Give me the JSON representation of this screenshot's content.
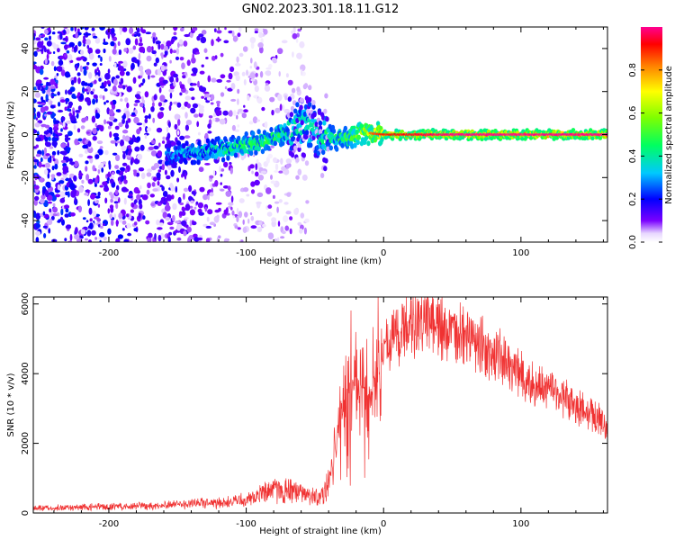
{
  "title": "GN02.2023.301.18.11.G12",
  "colors": {
    "snr_line": "#f03232",
    "colormap": [
      "#f0e6ff",
      "#c8a0ff",
      "#8a2be2",
      "#6a00ff",
      "#0000ff",
      "#00c8ff",
      "#00ff80",
      "#80ff00",
      "#ffff00",
      "#ff8000",
      "#ff0000",
      "#ff0080"
    ]
  },
  "chart_data": [
    {
      "type": "heatmap",
      "xlabel": "Height of straight line (km)",
      "ylabel": "Frequency (Hz)",
      "xlim": [
        -255,
        163
      ],
      "ylim": [
        -50,
        50
      ],
      "xticks": [
        "-200",
        "-100",
        "0",
        "100"
      ],
      "yticks": [
        "-40",
        "-20",
        "0",
        "20",
        "40"
      ],
      "xtick_values": [
        -200,
        -100,
        0,
        100
      ],
      "ytick_values": [
        -40,
        -20,
        0,
        20,
        40
      ],
      "grid": false,
      "colorbar": {
        "label": "Normalized spectral amplitude",
        "range": [
          0,
          1
        ],
        "ticks": [
          "0.0",
          "0.2",
          "0.4",
          "0.6",
          "0.8"
        ],
        "tick_values": [
          0.0,
          0.2,
          0.4,
          0.6,
          0.8
        ]
      },
      "ridge": {
        "description_points": [
          {
            "x": -158,
            "freq": -10,
            "amp": 0.35
          },
          {
            "x": -140,
            "freq": -8,
            "amp": 0.45
          },
          {
            "x": -120,
            "freq": -7,
            "amp": 0.5
          },
          {
            "x": -100,
            "freq": -5,
            "amp": 0.6
          },
          {
            "x": -85,
            "freq": -3,
            "amp": 0.6
          },
          {
            "x": -70,
            "freq": 2,
            "amp": 0.55
          },
          {
            "x": -58,
            "freq": 5,
            "amp": 0.5
          },
          {
            "x": -45,
            "freq": -1,
            "amp": 0.55
          },
          {
            "x": -30,
            "freq": -2,
            "amp": 0.6
          },
          {
            "x": -15,
            "freq": 1,
            "amp": 0.8
          },
          {
            "x": 0,
            "freq": 0,
            "amp": 0.9
          },
          {
            "x": 50,
            "freq": 0,
            "amp": 1.0
          },
          {
            "x": 100,
            "freq": 0,
            "amp": 1.0
          },
          {
            "x": 163,
            "freq": 0,
            "amp": 1.0
          }
        ]
      }
    },
    {
      "type": "line",
      "xlabel": "Height of straight line (km)",
      "ylabel": "SNR (10 * v/v)",
      "xlim": [
        -255,
        163
      ],
      "ylim": [
        0,
        6200
      ],
      "xticks": [
        "-200",
        "-100",
        "0",
        "100"
      ],
      "yticks": [
        "0",
        "2000",
        "4000",
        "6000"
      ],
      "xtick_values": [
        -200,
        -100,
        0,
        100
      ],
      "ytick_values": [
        0,
        2000,
        4000,
        6000
      ],
      "grid": false,
      "series": [
        {
          "x": [
            -255,
            -230,
            -200,
            -175,
            -150,
            -140,
            -125,
            -110,
            -100,
            -90,
            -80,
            -70,
            -60,
            -50,
            -45,
            -40,
            -35,
            -30,
            -25,
            -20,
            -15,
            -10,
            -5,
            0,
            10,
            20,
            30,
            40,
            50,
            60,
            70,
            80,
            90,
            100,
            110,
            120,
            130,
            140,
            150,
            163
          ],
          "y": [
            150,
            160,
            180,
            200,
            230,
            300,
            280,
            320,
            380,
            500,
            700,
            650,
            600,
            450,
            500,
            900,
            1800,
            2800,
            3700,
            4000,
            3600,
            3300,
            3900,
            4700,
            5100,
            5400,
            5500,
            5300,
            5100,
            5000,
            4800,
            4600,
            4300,
            4000,
            3800,
            3600,
            3300,
            3000,
            2800,
            2500
          ]
        }
      ]
    }
  ]
}
